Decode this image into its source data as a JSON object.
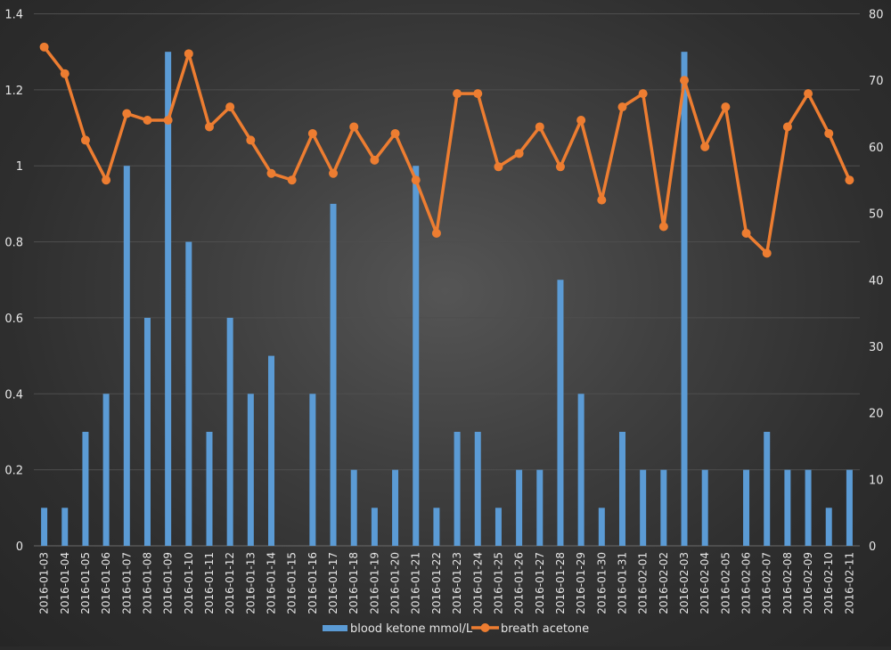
{
  "chart_data": {
    "type": "bar+line",
    "title": "",
    "categories": [
      "2016-01-03",
      "2016-01-04",
      "2016-01-05",
      "2016-01-06",
      "2016-01-07",
      "2016-01-08",
      "2016-01-09",
      "2016-01-10",
      "2016-01-11",
      "2016-01-12",
      "2016-01-13",
      "2016-01-14",
      "2016-01-15",
      "2016-01-16",
      "2016-01-17",
      "2016-01-18",
      "2016-01-19",
      "2016-01-20",
      "2016-01-21",
      "2016-01-22",
      "2016-01-23",
      "2016-01-24",
      "2016-01-25",
      "2016-01-26",
      "2016-01-27",
      "2016-01-28",
      "2016-01-29",
      "2016-01-30",
      "2016-01-31",
      "2016-02-01",
      "2016-02-02",
      "2016-02-03",
      "2016-02-04",
      "2016-02-05",
      "2016-02-06",
      "2016-02-07",
      "2016-02-08",
      "2016-02-09",
      "2016-02-10",
      "2016-02-11"
    ],
    "series": [
      {
        "name": "blood ketone mmol/L",
        "type": "bar",
        "axis": "left",
        "color": "#5b9bd5",
        "values": [
          0.1,
          0.1,
          0.3,
          0.4,
          1.0,
          0.6,
          1.3,
          0.8,
          0.3,
          0.6,
          0.4,
          0.5,
          null,
          0.4,
          0.9,
          0.2,
          0.1,
          0.2,
          1.0,
          0.1,
          0.3,
          0.3,
          0.1,
          0.2,
          0.2,
          0.7,
          0.4,
          0.1,
          0.3,
          0.2,
          0.2,
          1.3,
          0.2,
          null,
          0.2,
          0.3,
          0.2,
          0.2,
          0.1,
          0.2
        ]
      },
      {
        "name": "breath acetone",
        "type": "line",
        "axis": "right",
        "color": "#ed7d31",
        "values": [
          75,
          71,
          61,
          55,
          65,
          64,
          64,
          74,
          63,
          66,
          61,
          56,
          55,
          62,
          56,
          63,
          58,
          62,
          55,
          47,
          68,
          68,
          57,
          59,
          63,
          57,
          64,
          52,
          66,
          68,
          48,
          70,
          60,
          66,
          47,
          44,
          63,
          68,
          62,
          55
        ]
      }
    ],
    "y_left": {
      "range": [
        0,
        1.4
      ],
      "ticks": [
        "0",
        "0.2",
        "0.4",
        "0.6",
        "0.8",
        "1",
        "1.2",
        "1.4"
      ]
    },
    "y_right": {
      "range": [
        0,
        80
      ],
      "ticks": [
        "0",
        "10",
        "20",
        "30",
        "40",
        "50",
        "60",
        "70",
        "80"
      ]
    },
    "grid": true,
    "legend": "bottom",
    "xlabel": "",
    "ylabel": ""
  }
}
